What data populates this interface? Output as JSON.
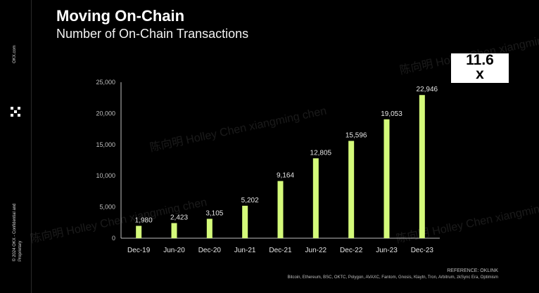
{
  "title": "Moving On-Chain",
  "subtitle": "Number of On-Chain Transactions",
  "badge": {
    "line1": "11.6",
    "line2": "x"
  },
  "sidebar": {
    "url": "OKX.com",
    "legal": "© 2024 OKX - Confidential and Proprietary"
  },
  "watermark_text": "陈向明 Holley Chen xiangming chen",
  "footer": {
    "reference": "REFERENCE: OKLINK",
    "chains": "Bitcoin, Ethereum, BSC, OKTC, Polygon, AVAXC, Fantom, Gnosis, Klaytn, Tron, Arbitrum, zkSync Era, Optimism"
  },
  "colors": {
    "bar": "#d4fa7a",
    "axis": "#bfbfbf",
    "tick_text": "#bfbfbf",
    "label_text": "#e6e6e6"
  },
  "chart_data": {
    "type": "bar",
    "title": "Number of On-Chain Transactions",
    "categories": [
      "Dec-19",
      "Jun-20",
      "Dec-20",
      "Jun-21",
      "Dec-21",
      "Jun-22",
      "Dec-22",
      "Jun-23",
      "Dec-23"
    ],
    "values": [
      1980,
      2423,
      3105,
      5202,
      9164,
      12805,
      15596,
      19053,
      22946
    ],
    "value_labels": [
      "1,980",
      "2,423",
      "3,105",
      "5,202",
      "9,164",
      "12,805",
      "15,596",
      "19,053",
      "22,946"
    ],
    "yticks": [
      0,
      5000,
      10000,
      15000,
      20000,
      25000
    ],
    "ytick_labels": [
      "0",
      "5,000",
      "10,000",
      "15,000",
      "20,000",
      "25,000"
    ],
    "ylim": [
      0,
      25000
    ],
    "xlabel": "",
    "ylabel": "",
    "grid": false
  }
}
